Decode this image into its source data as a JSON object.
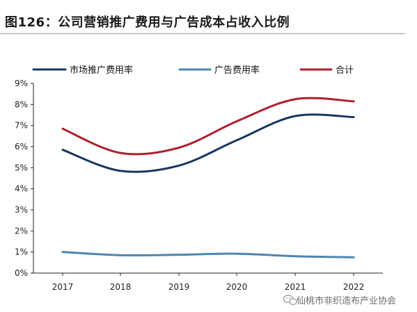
{
  "figure": {
    "title": "图126：公司营销推广费用与广告成本占收入比例"
  },
  "watermark": {
    "text": "仙桃市非织造布产业协会",
    "icon": "wechat-icon"
  },
  "colors": {
    "series_market": "#17375e",
    "series_ads": "#4a86b0",
    "series_total": "#b01e2f",
    "axis": "#222222"
  },
  "chart_data": {
    "type": "line",
    "title": "",
    "xlabel": "",
    "ylabel": "",
    "categories": [
      "2017",
      "2018",
      "2019",
      "2020",
      "2021",
      "2022"
    ],
    "x_tick_labels": [
      "2017",
      "2018",
      "2019",
      "2020",
      "2021",
      "2022"
    ],
    "y_tick_labels": [
      "0%",
      "1%",
      "2%",
      "3%",
      "4%",
      "5%",
      "6%",
      "7%",
      "8%",
      "9%"
    ],
    "ylim": [
      0,
      9
    ],
    "y_unit": "%",
    "grid": false,
    "legend_position": "top",
    "smooth": true,
    "series": [
      {
        "name": "市场推广费用率",
        "values": [
          5.85,
          4.85,
          5.1,
          6.3,
          7.45,
          7.4
        ]
      },
      {
        "name": "广告费用率",
        "values": [
          1.0,
          0.85,
          0.87,
          0.92,
          0.8,
          0.75
        ]
      },
      {
        "name": "合计",
        "values": [
          6.85,
          5.7,
          5.95,
          7.2,
          8.25,
          8.15
        ]
      }
    ]
  }
}
